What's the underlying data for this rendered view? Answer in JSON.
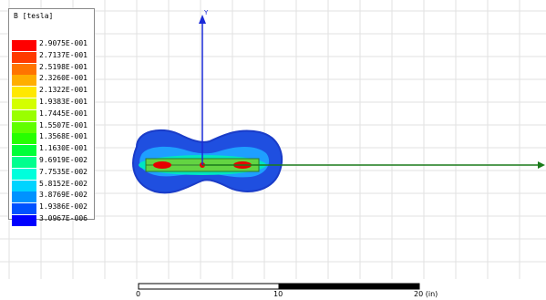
{
  "legend": {
    "title": "B [tesla]",
    "entries": [
      {
        "value": "2.9075E-001",
        "color": "#ff0000"
      },
      {
        "value": "2.7137E-001",
        "color": "#ff3a00"
      },
      {
        "value": "2.5198E-001",
        "color": "#ff7400"
      },
      {
        "value": "2.3260E-001",
        "color": "#ffae00"
      },
      {
        "value": "2.1322E-001",
        "color": "#ffe800"
      },
      {
        "value": "1.9383E-001",
        "color": "#d4ff00"
      },
      {
        "value": "1.7445E-001",
        "color": "#9aff00"
      },
      {
        "value": "1.5507E-001",
        "color": "#60ff00"
      },
      {
        "value": "1.3568E-001",
        "color": "#26ff00"
      },
      {
        "value": "1.1630E-001",
        "color": "#00ff38"
      },
      {
        "value": "9.6919E-002",
        "color": "#00ff8e"
      },
      {
        "value": "7.7535E-002",
        "color": "#00ffdc"
      },
      {
        "value": "5.8152E-002",
        "color": "#00d4ff"
      },
      {
        "value": "3.8769E-002",
        "color": "#0092ff"
      },
      {
        "value": "1.9386E-002",
        "color": "#0052ff"
      },
      {
        "value": "3.0967E-006",
        "color": "#0000ff"
      }
    ]
  },
  "axes": {
    "y_label": "Y"
  },
  "scale_bar": {
    "tick_0": "0",
    "tick_1": "10",
    "tick_2": "20 (in)"
  }
}
